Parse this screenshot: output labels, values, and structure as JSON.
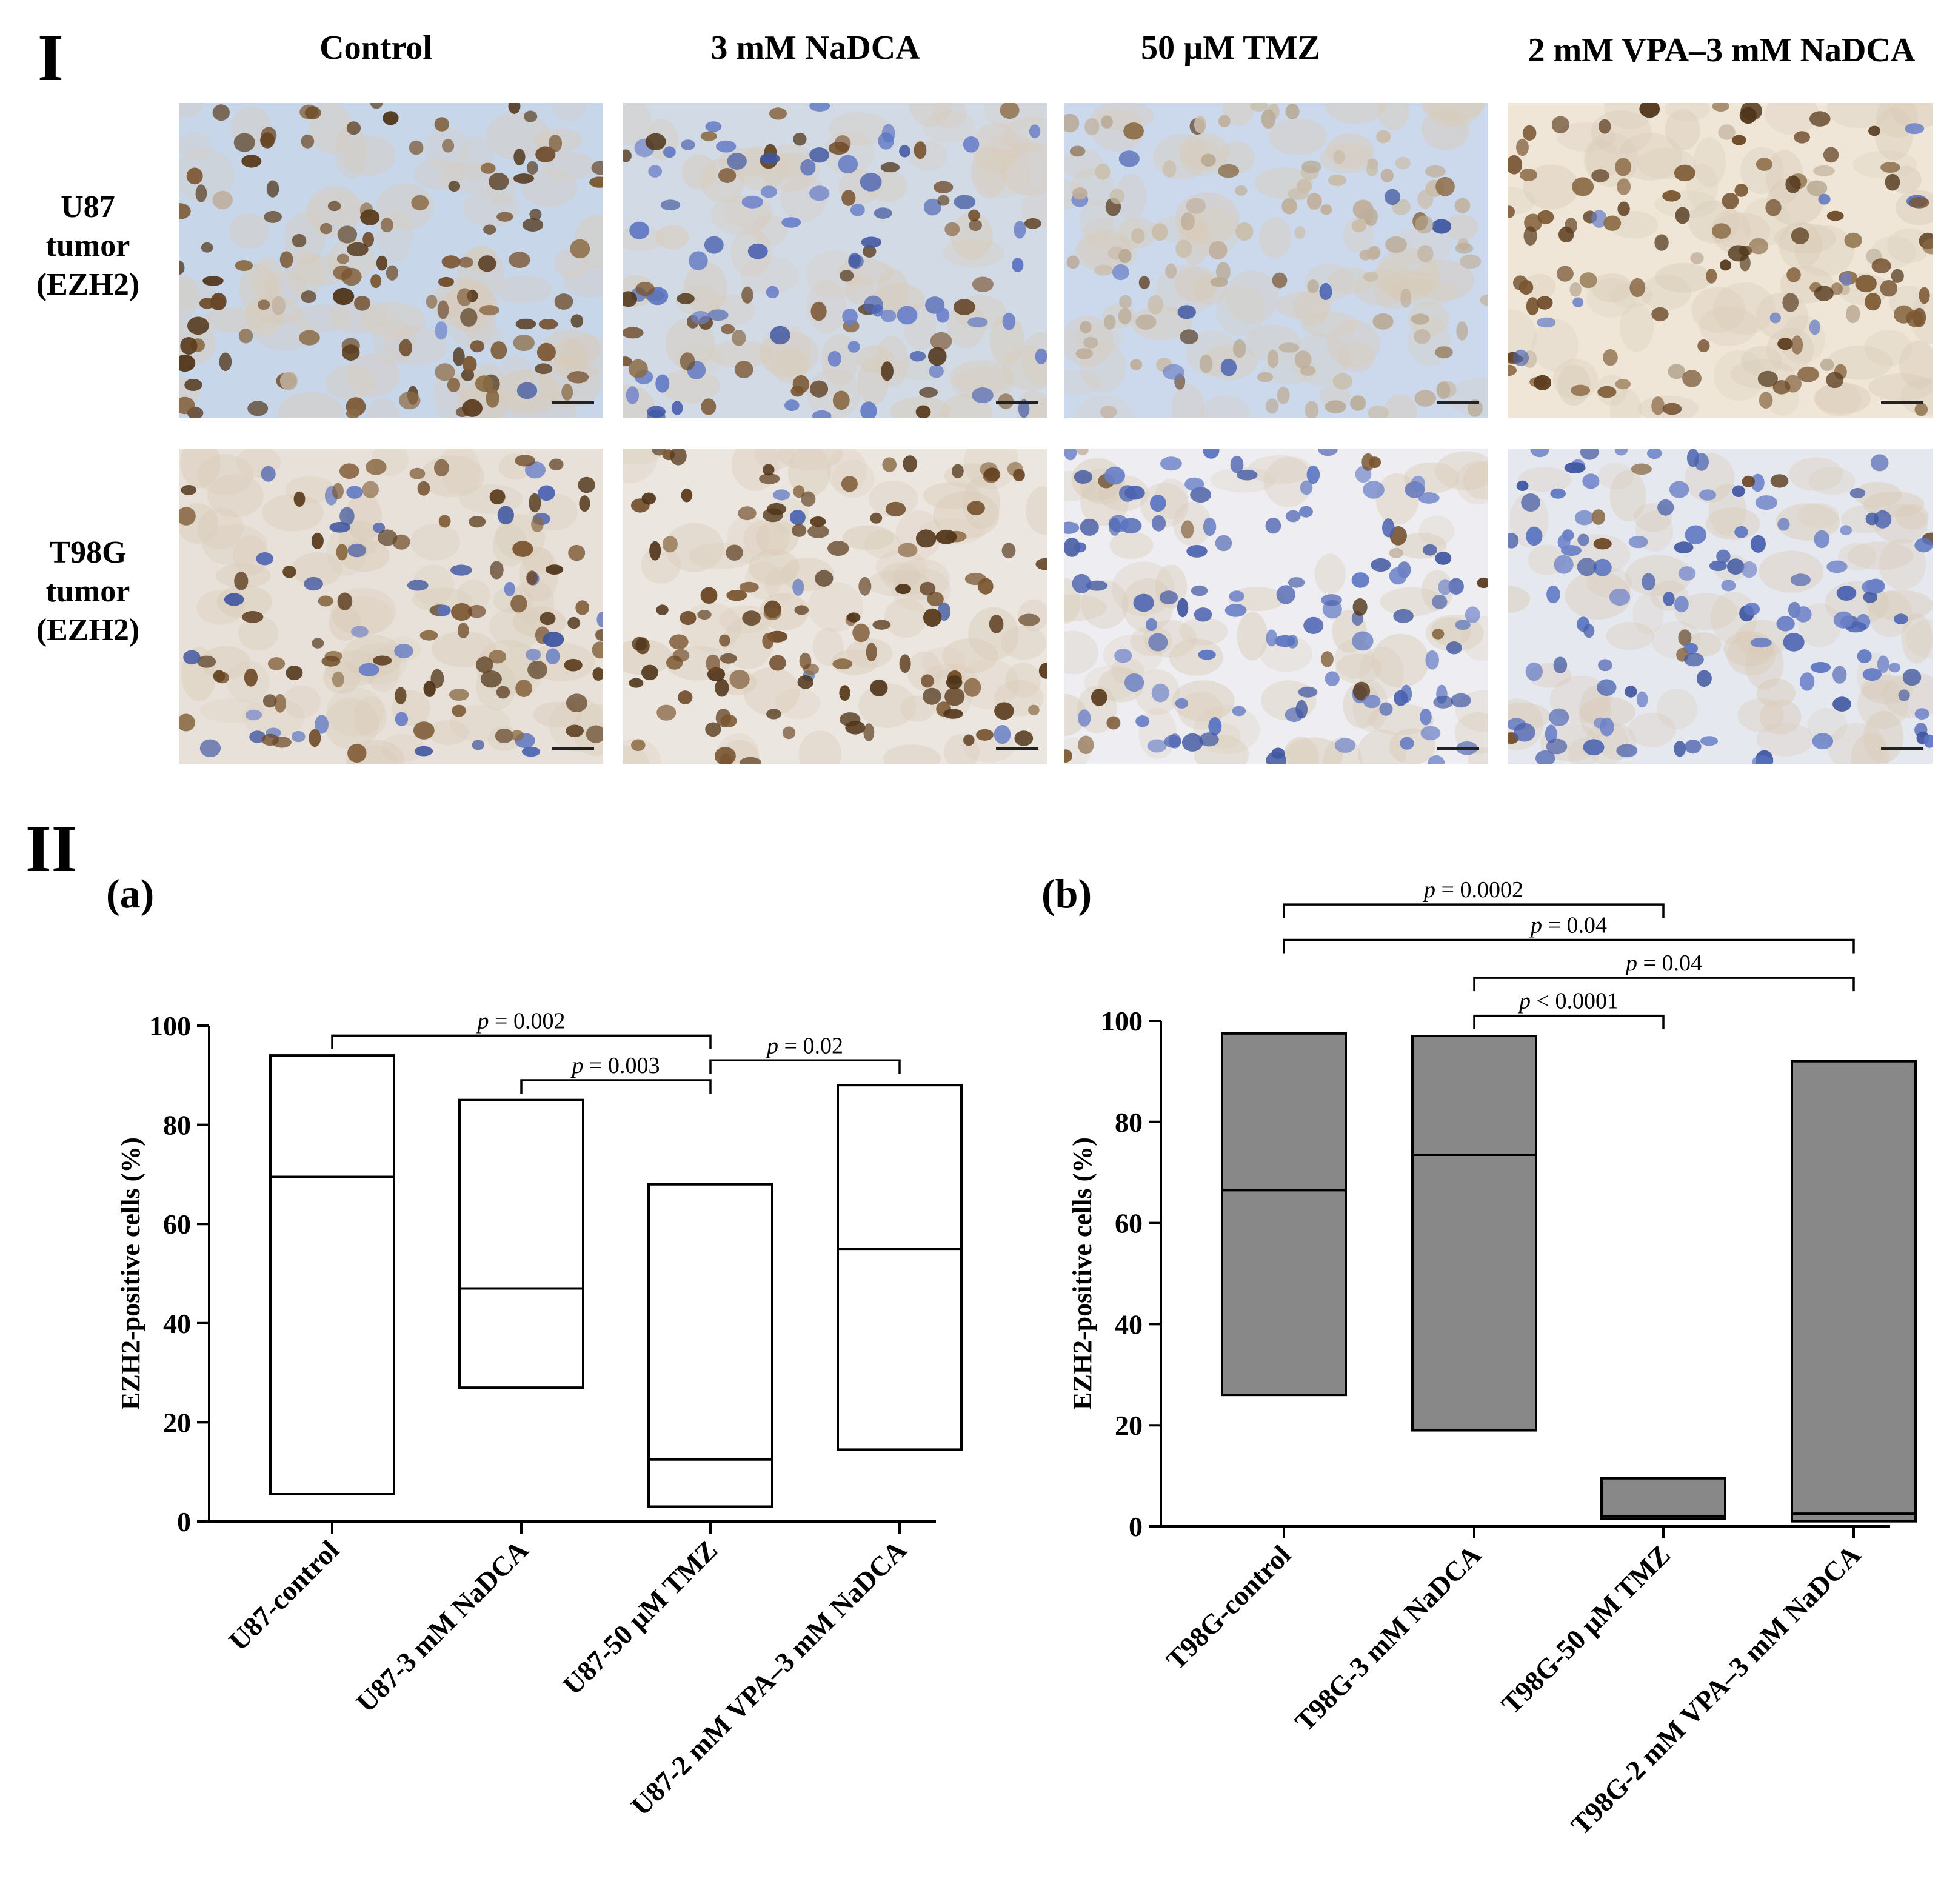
{
  "section_I_label": "I",
  "section_II_label": "II",
  "columns": [
    "Control",
    "3 mM NaDCA",
    "50 µM TMZ",
    "2 mM VPA–3 mM NaDCA"
  ],
  "rows": [
    {
      "label_lines": [
        "U87",
        "tumor",
        "(EZH2)"
      ]
    },
    {
      "label_lines": [
        "T98G",
        "tumor",
        "(EZH2)"
      ]
    }
  ],
  "micrographs": [
    {
      "row": 0,
      "col": 0,
      "nuclei_hue": "brown",
      "bg": "#c8d6ea",
      "brown_fraction": 0.9,
      "blue_fraction": 0.05
    },
    {
      "row": 0,
      "col": 1,
      "nuclei_hue": "mixed",
      "bg": "#d2dae6",
      "brown_fraction": 0.5,
      "blue_fraction": 0.5
    },
    {
      "row": 0,
      "col": 2,
      "nuclei_hue": "pale",
      "bg": "#ccd9ec",
      "brown_fraction": 0.08,
      "blue_fraction": 0.12
    },
    {
      "row": 0,
      "col": 3,
      "nuclei_hue": "brown",
      "bg": "#efe6d8",
      "brown_fraction": 0.9,
      "blue_fraction": 0.05
    },
    {
      "row": 1,
      "col": 0,
      "nuclei_hue": "brown",
      "bg": "#e8e1d9",
      "brown_fraction": 0.7,
      "blue_fraction": 0.3
    },
    {
      "row": 1,
      "col": 1,
      "nuclei_hue": "brown",
      "bg": "#ece6e0",
      "brown_fraction": 0.95,
      "blue_fraction": 0.05
    },
    {
      "row": 1,
      "col": 2,
      "nuclei_hue": "blue",
      "bg": "#eeeef2",
      "brown_fraction": 0.08,
      "blue_fraction": 0.9
    },
    {
      "row": 1,
      "col": 3,
      "nuclei_hue": "blue",
      "bg": "#e6e8f0",
      "brown_fraction": 0.1,
      "blue_fraction": 0.9
    }
  ],
  "chart_data": [
    {
      "panel": "(a)",
      "type": "floating-bar",
      "ylabel": "EZH2-positive cells (%)",
      "ylim": [
        0,
        100
      ],
      "yticks": [
        0,
        20,
        40,
        60,
        80,
        100
      ],
      "fill": "#ffffff",
      "categories": [
        "U87-control",
        "U87-3 mM NaDCA",
        "U87-50 µM TMZ",
        "U87-2 mM VPA–3 mM NaDCA"
      ],
      "bars": [
        {
          "min": 5.5,
          "max": 94,
          "median": 69.5
        },
        {
          "min": 27,
          "max": 85,
          "median": 47
        },
        {
          "min": 3,
          "max": 68,
          "median": 12.5
        },
        {
          "min": 14.5,
          "max": 88,
          "median": 55
        }
      ],
      "comparisons": [
        {
          "from": 0,
          "to": 2,
          "text": "p = 0.002",
          "level": 98
        },
        {
          "from": 1,
          "to": 2,
          "text": "p = 0.003",
          "level": 89
        },
        {
          "from": 2,
          "to": 3,
          "text": "p = 0.02",
          "level": 93
        }
      ]
    },
    {
      "panel": "(b)",
      "type": "floating-bar",
      "ylabel": "EZH2-positive cells (%)",
      "ylim": [
        0,
        100
      ],
      "yticks": [
        0,
        20,
        40,
        60,
        80,
        100
      ],
      "fill": "#888888",
      "categories": [
        "T98G-control",
        "T98G-3 mM NaDCA",
        "T98G-50 µM TMZ",
        "T98G-2 mM VPA–3 mM NaDCA"
      ],
      "bars": [
        {
          "min": 26,
          "max": 97.5,
          "median": 66.5
        },
        {
          "min": 19,
          "max": 97,
          "median": 73.5
        },
        {
          "min": 1.5,
          "max": 9.5,
          "median": 2
        },
        {
          "min": 1,
          "max": 92,
          "median": 2.5
        }
      ],
      "comparisons": [
        {
          "from": 0,
          "to": 2,
          "text": "p = 0.0002",
          "level": 123
        },
        {
          "from": 1,
          "to": 2,
          "text": "p < 0.0001",
          "level": 101
        },
        {
          "from": 0,
          "to": 3,
          "text": "p = 0.04",
          "level": 116
        },
        {
          "from": 1,
          "to": 3,
          "text": "p = 0.04",
          "level": 108.5
        }
      ]
    }
  ]
}
